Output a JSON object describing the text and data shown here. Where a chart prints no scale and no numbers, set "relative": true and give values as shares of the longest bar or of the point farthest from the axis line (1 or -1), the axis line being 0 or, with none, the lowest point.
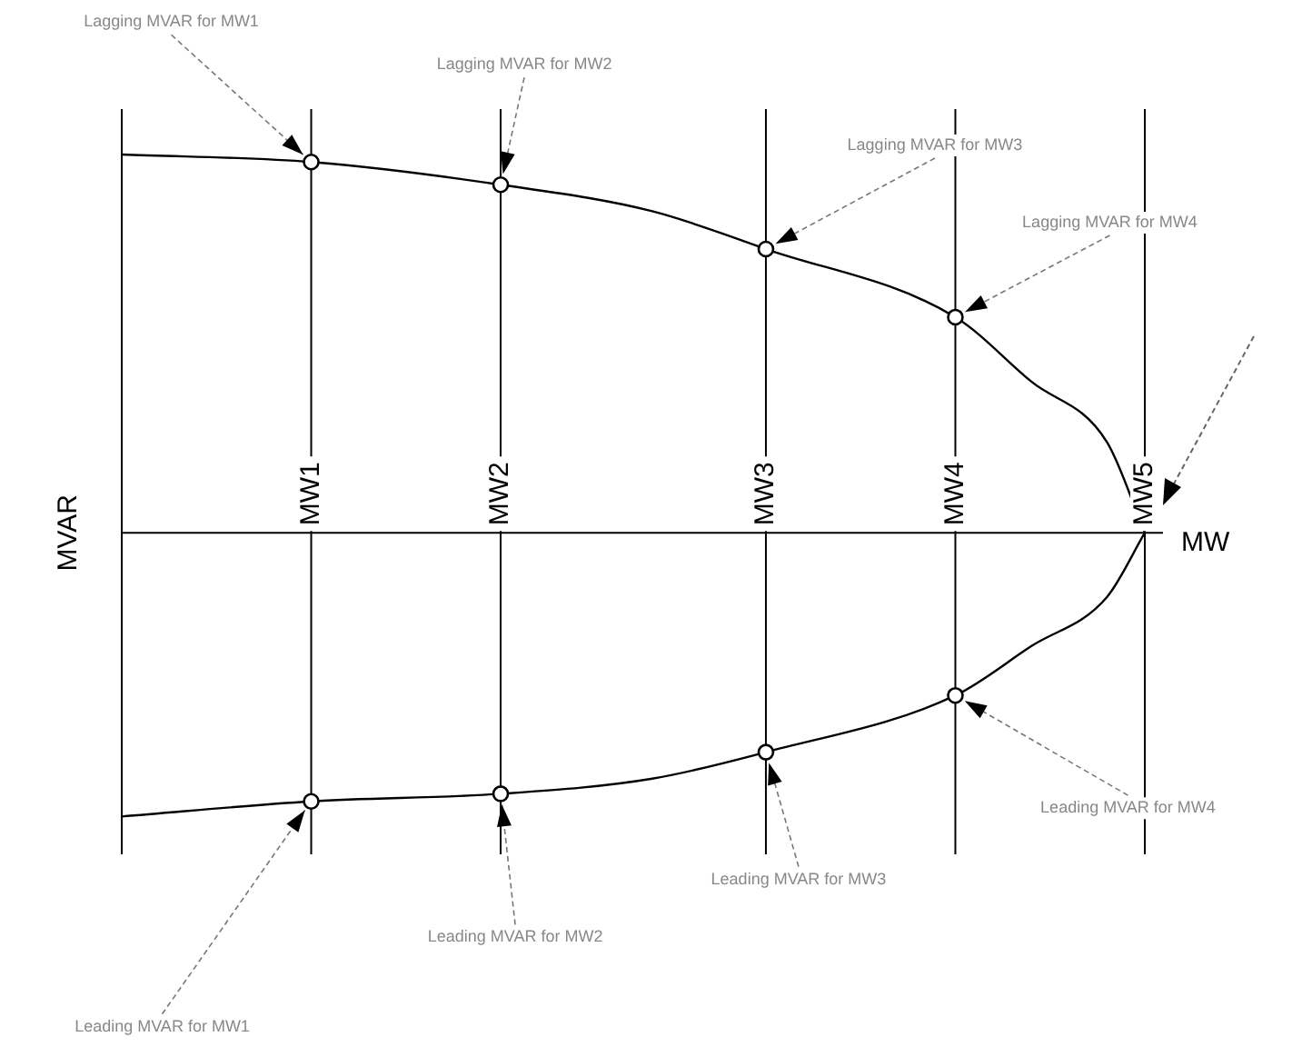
{
  "chart_data": {
    "type": "line",
    "relative": true,
    "xlabel": "MW",
    "ylabel": "MVAR",
    "categories": [
      null,
      null,
      null,
      null,
      null,
      "MW1",
      null,
      null,
      null,
      null,
      "MW2",
      null,
      null,
      null,
      null,
      null,
      null,
      "MW3",
      null,
      null,
      null,
      null,
      "MW4",
      null,
      null,
      null,
      null,
      "MW5"
    ],
    "grid": "x",
    "legend": false,
    "marker": "none",
    "line_style": "solid",
    "series": [
      {
        "color": "#000000",
        "values": [
          1,
          null,
          null,
          null,
          null,
          0.98,
          null,
          null,
          null,
          null,
          0.92,
          null,
          null,
          null,
          0.85,
          null,
          null,
          0.75,
          null,
          null,
          null,
          null,
          0.57,
          null,
          0.4,
          null,
          0.24,
          0
        ]
      },
      {
        "color": "#000000",
        "values": [
          -0.75,
          null,
          null,
          null,
          null,
          -0.71,
          null,
          null,
          null,
          null,
          -0.69,
          null,
          null,
          null,
          -0.65,
          null,
          null,
          -0.58,
          null,
          null,
          null,
          null,
          -0.43,
          null,
          -0.3,
          null,
          -0.17,
          0
        ]
      },
      {
        "type": "scatter",
        "marker": "circle",
        "color": "#000000",
        "x": [
          "MW1",
          "MW2",
          "MW3",
          "MW4",
          "MW1",
          "MW2",
          "MW3",
          "MW4"
        ],
        "values": [
          0.98,
          0.92,
          0.75,
          0.57,
          -0.71,
          -0.69,
          -0.58,
          -0.43
        ]
      }
    ],
    "annotations": [
      {
        "text": "Lagging MVAR for MW1",
        "x": "MW1",
        "y": 0.98
      },
      {
        "text": "Lagging MVAR for MW2",
        "x": "MW2",
        "y": 0.92
      },
      {
        "text": "Lagging MVAR for MW3",
        "x": "MW3",
        "y": 0.75
      },
      {
        "text": "Lagging MVAR for MW4",
        "x": "MW4",
        "y": 0.57
      },
      {
        "text": "Leading MVAR for MW1",
        "x": "MW1",
        "y": -0.71
      },
      {
        "text": "Leading MVAR for MW2",
        "x": "MW2",
        "y": -0.69
      },
      {
        "text": "Leading MVAR for MW3",
        "x": "MW3",
        "y": -0.58
      },
      {
        "text": "Leading MVAR for MW4",
        "x": "MW4",
        "y": -0.43
      }
    ]
  }
}
